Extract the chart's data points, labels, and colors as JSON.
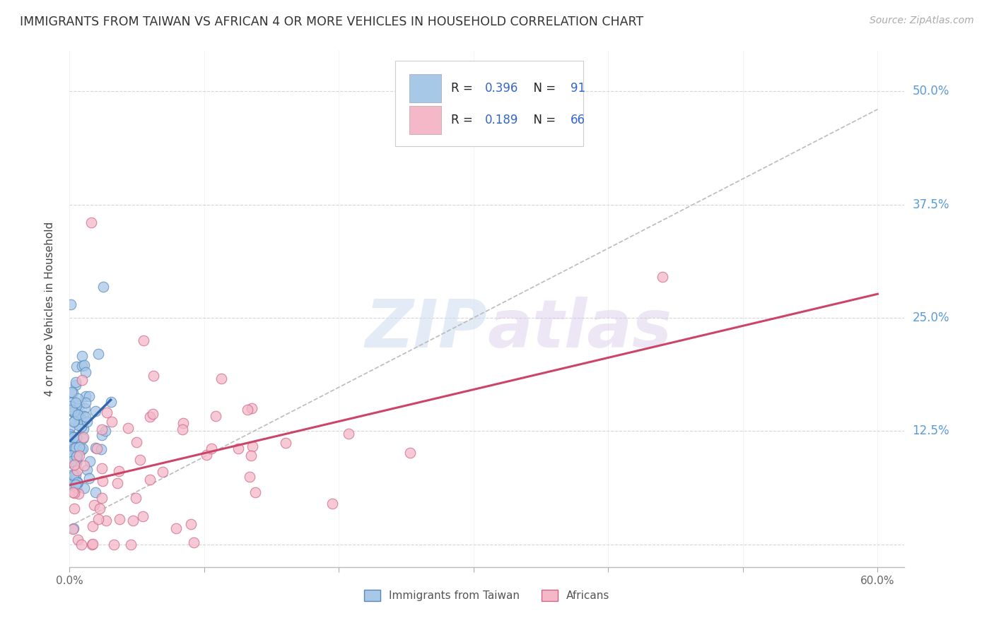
{
  "title": "IMMIGRANTS FROM TAIWAN VS AFRICAN 4 OR MORE VEHICLES IN HOUSEHOLD CORRELATION CHART",
  "source": "Source: ZipAtlas.com",
  "ylabel": "4 or more Vehicles in Household",
  "yticks": [
    0.0,
    0.125,
    0.25,
    0.375,
    0.5
  ],
  "ytick_labels": [
    "",
    "12.5%",
    "25.0%",
    "37.5%",
    "50.0%"
  ],
  "xlim": [
    0.0,
    0.62
  ],
  "ylim": [
    -0.025,
    0.545
  ],
  "taiwan_R": 0.396,
  "taiwan_N": 91,
  "african_R": 0.189,
  "african_N": 66,
  "taiwan_color": "#a8c8e8",
  "african_color": "#f4b8c8",
  "taiwan_edge_color": "#5588bb",
  "african_edge_color": "#cc6688",
  "taiwan_line_color": "#3366aa",
  "african_line_color": "#cc4466",
  "dashed_line_color": "#bbbbbb",
  "legend_taiwan": "Immigrants from Taiwan",
  "legend_african": "Africans",
  "watermark": "ZIPatlas",
  "background_color": "#ffffff",
  "grid_color": "#cccccc",
  "ytick_color": "#5b9bd5",
  "legend_text_dark": "#222222",
  "legend_text_blue": "#3366cc",
  "legend_text_red": "#cc3333",
  "xtick_label_left": "0.0%",
  "xtick_label_right": "60.0%"
}
